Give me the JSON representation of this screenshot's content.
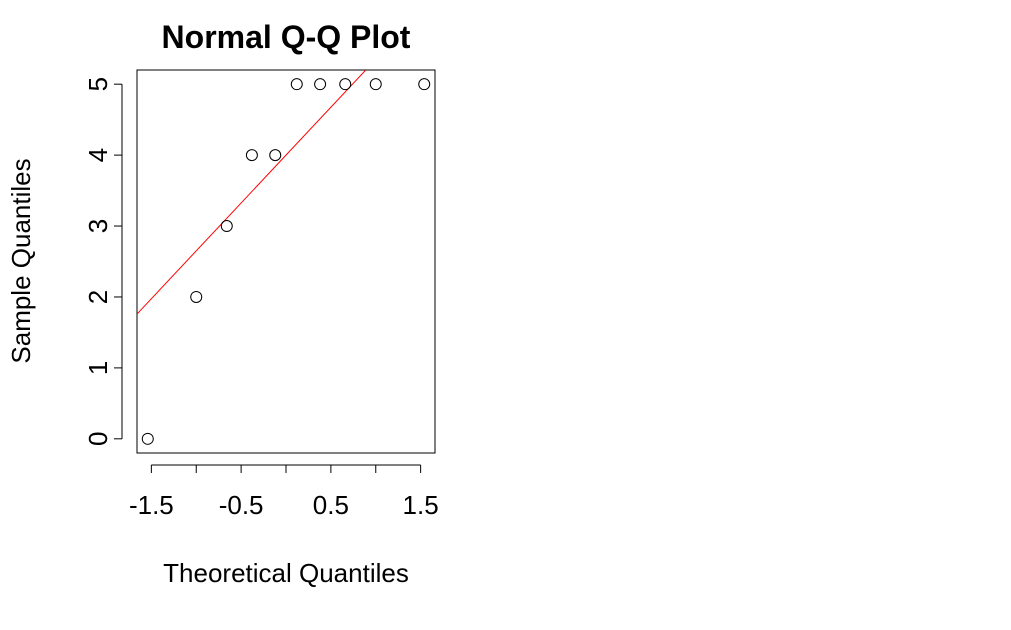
{
  "chart_data": {
    "type": "scatter",
    "title": "Normal Q-Q Plot",
    "xlabel": "Theoretical Quantiles",
    "ylabel": "Sample Quantiles",
    "xlim": [
      -1.66,
      1.66
    ],
    "ylim": [
      -0.2,
      5.2
    ],
    "x_ticks": [
      -1.5,
      -1.0,
      -0.5,
      0.0,
      0.5,
      1.0,
      1.5
    ],
    "x_tick_labels": [
      "-1.5",
      "",
      "-0.5",
      "",
      "0.5",
      "",
      "1.5"
    ],
    "y_ticks": [
      0,
      1,
      2,
      3,
      4,
      5
    ],
    "y_tick_labels": [
      "0",
      "1",
      "2",
      "3",
      "4",
      "5"
    ],
    "points": [
      {
        "x": -1.54,
        "y": 0
      },
      {
        "x": -1.0,
        "y": 2
      },
      {
        "x": -0.66,
        "y": 3
      },
      {
        "x": -0.38,
        "y": 4
      },
      {
        "x": -0.12,
        "y": 4
      },
      {
        "x": 0.12,
        "y": 5
      },
      {
        "x": 0.38,
        "y": 5
      },
      {
        "x": 0.66,
        "y": 5
      },
      {
        "x": 1.0,
        "y": 5
      },
      {
        "x": 1.54,
        "y": 5
      }
    ],
    "qq_line": {
      "intercept": 4.0,
      "slope": 1.35,
      "color": "#ff0000"
    },
    "point_style": "open-circle",
    "grid": false
  }
}
